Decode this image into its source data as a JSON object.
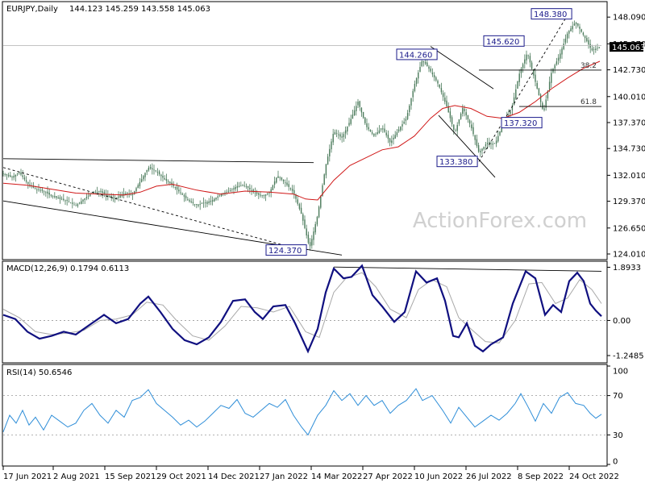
{
  "header": {
    "symbol": "EURJPY,Daily",
    "ohlc": "144.123 145.259 143.558 145.063"
  },
  "watermark": "ActionForex.com",
  "colors": {
    "candle": "#4a7a5a",
    "ma": "#d01818",
    "macd": "#101080",
    "signal": "#a8a8a8",
    "rsi": "#2f8ed8",
    "label_border": "#1a1a8a",
    "trend": "#000000"
  },
  "chart_data": [
    {
      "type": "candlestick",
      "panel": "price",
      "ylim": [
        123.6,
        149.5
      ],
      "y_ticks": [
        "148.090",
        "145.370",
        "142.730",
        "140.010",
        "137.370",
        "134.730",
        "132.010",
        "129.370",
        "126.650",
        "124.010"
      ],
      "last_price": "145.063",
      "x_labels": [
        "17 Jun 2021",
        "2 Aug 2021",
        "15 Sep 2021",
        "29 Oct 2021",
        "14 Dec 2021",
        "27 Jan 2022",
        "14 Mar 2022",
        "27 Apr 2022",
        "10 Jun 2022",
        "26 Jul 2022",
        "8 Sep 2022",
        "24 Oct 2022"
      ],
      "close_path": [
        [
          0,
          132.2
        ],
        [
          10,
          131.8
        ],
        [
          20,
          132.3
        ],
        [
          30,
          131.2
        ],
        [
          40,
          130.6
        ],
        [
          50,
          130.4
        ],
        [
          60,
          129.9
        ],
        [
          70,
          129.6
        ],
        [
          80,
          129.4
        ],
        [
          90,
          128.9
        ],
        [
          100,
          129.6
        ],
        [
          110,
          130.2
        ],
        [
          120,
          130.4
        ],
        [
          130,
          129.8
        ],
        [
          140,
          129.7
        ],
        [
          150,
          130.2
        ],
        [
          160,
          130.0
        ],
        [
          170,
          131.4
        ],
        [
          180,
          132.8
        ],
        [
          190,
          132.4
        ],
        [
          200,
          131.6
        ],
        [
          210,
          131.0
        ],
        [
          220,
          130.2
        ],
        [
          230,
          129.4
        ],
        [
          240,
          129.0
        ],
        [
          250,
          129.2
        ],
        [
          260,
          129.5
        ],
        [
          270,
          130.1
        ],
        [
          280,
          130.4
        ],
        [
          290,
          130.9
        ],
        [
          300,
          131.0
        ],
        [
          310,
          130.3
        ],
        [
          320,
          129.9
        ],
        [
          330,
          130.2
        ],
        [
          340,
          132.0
        ],
        [
          350,
          131.2
        ],
        [
          360,
          130.3
        ],
        [
          370,
          128.0
        ],
        [
          380,
          124.6
        ],
        [
          390,
          128.0
        ],
        [
          400,
          133.0
        ],
        [
          410,
          136.5
        ],
        [
          420,
          135.8
        ],
        [
          430,
          137.5
        ],
        [
          440,
          139.5
        ],
        [
          450,
          137.0
        ],
        [
          460,
          136.0
        ],
        [
          470,
          136.9
        ],
        [
          480,
          135.3
        ],
        [
          490,
          136.6
        ],
        [
          500,
          137.8
        ],
        [
          510,
          141.2
        ],
        [
          520,
          143.8
        ],
        [
          530,
          142.6
        ],
        [
          540,
          141.2
        ],
        [
          550,
          139.0
        ],
        [
          560,
          136.3
        ],
        [
          570,
          138.9
        ],
        [
          580,
          137.0
        ],
        [
          590,
          134.3
        ],
        [
          600,
          135.3
        ],
        [
          610,
          135.2
        ],
        [
          620,
          137.3
        ],
        [
          630,
          138.6
        ],
        [
          640,
          142.3
        ],
        [
          650,
          144.5
        ],
        [
          660,
          141.5
        ],
        [
          670,
          138.4
        ],
        [
          680,
          142.5
        ],
        [
          690,
          144.2
        ],
        [
          700,
          146.5
        ],
        [
          710,
          147.6
        ],
        [
          720,
          146.2
        ],
        [
          730,
          144.7
        ],
        [
          740,
          145.06
        ]
      ],
      "ma_path": [
        [
          0,
          131.2
        ],
        [
          30,
          131.0
        ],
        [
          60,
          130.6
        ],
        [
          90,
          130.2
        ],
        [
          120,
          130.1
        ],
        [
          150,
          130.0
        ],
        [
          170,
          130.3
        ],
        [
          190,
          130.9
        ],
        [
          210,
          131.1
        ],
        [
          240,
          130.5
        ],
        [
          270,
          130.1
        ],
        [
          300,
          130.4
        ],
        [
          330,
          130.3
        ],
        [
          360,
          130.1
        ],
        [
          375,
          129.6
        ],
        [
          390,
          129.5
        ],
        [
          410,
          131.5
        ],
        [
          430,
          133.0
        ],
        [
          450,
          133.8
        ],
        [
          470,
          134.6
        ],
        [
          490,
          134.9
        ],
        [
          510,
          136.0
        ],
        [
          530,
          137.8
        ],
        [
          545,
          138.8
        ],
        [
          560,
          139.1
        ],
        [
          580,
          138.8
        ],
        [
          600,
          138.0
        ],
        [
          620,
          137.8
        ],
        [
          640,
          138.4
        ],
        [
          660,
          139.5
        ],
        [
          680,
          140.8
        ],
        [
          700,
          141.9
        ],
        [
          720,
          142.9
        ],
        [
          740,
          143.6
        ]
      ],
      "trendlines": [
        [
          [
            0,
            133.7
          ],
          [
            385,
            133.3
          ]
        ],
        [
          [
            0,
            129.4
          ],
          [
            420,
            123.9
          ]
        ],
        [
          [
            530,
            145.1
          ],
          [
            608,
            140.8
          ]
        ],
        [
          [
            540,
            138.1
          ],
          [
            610,
            131.8
          ]
        ],
        [
          [
            590,
            142.7
          ],
          [
            742,
            142.7
          ]
        ],
        [
          [
            640,
            139.0
          ],
          [
            742,
            139.0
          ]
        ],
        [
          [
            590,
            133.4
          ],
          [
            700,
            148.3
          ]
        ],
        [
          [
            0,
            132.8
          ],
          [
            370,
            124.4
          ]
        ],
        [
          [
            0,
            145.2
          ],
          [
            742,
            145.2
          ]
        ]
      ],
      "dashed_indices": [
        6,
        7
      ],
      "gray_indices": [
        8
      ],
      "level_labels": [
        {
          "text": "148.380",
          "at": [
            655,
            148.38
          ]
        },
        {
          "text": "145.620",
          "at": [
            596,
            145.62
          ]
        },
        {
          "text": "144.260",
          "at": [
            488,
            144.26
          ]
        },
        {
          "text": "137.320",
          "at": [
            618,
            137.32
          ]
        },
        {
          "text": "133.380",
          "at": [
            538,
            133.38
          ]
        },
        {
          "text": "124.370",
          "at": [
            326,
            124.37
          ]
        }
      ],
      "fib_labels": [
        {
          "text": "38.2",
          "at": [
            736,
            142.7
          ]
        },
        {
          "text": "61.8",
          "at": [
            736,
            139.0
          ]
        }
      ]
    },
    {
      "type": "line",
      "panel": "macd",
      "title": "MACD(12,26,9) 0.1794 0.6113",
      "ylim": [
        -1.45,
        2.05
      ],
      "y_ticks": [
        "1.8933",
        "0.00",
        "-1.2485"
      ],
      "macd": [
        [
          0,
          0.2
        ],
        [
          15,
          0.05
        ],
        [
          30,
          -0.4
        ],
        [
          45,
          -0.65
        ],
        [
          60,
          -0.55
        ],
        [
          75,
          -0.4
        ],
        [
          90,
          -0.5
        ],
        [
          110,
          -0.1
        ],
        [
          125,
          0.2
        ],
        [
          140,
          -0.1
        ],
        [
          155,
          0.05
        ],
        [
          170,
          0.6
        ],
        [
          180,
          0.85
        ],
        [
          195,
          0.3
        ],
        [
          210,
          -0.3
        ],
        [
          225,
          -0.7
        ],
        [
          240,
          -0.85
        ],
        [
          255,
          -0.6
        ],
        [
          270,
          -0.05
        ],
        [
          285,
          0.7
        ],
        [
          300,
          0.75
        ],
        [
          312,
          0.3
        ],
        [
          322,
          0.05
        ],
        [
          335,
          0.5
        ],
        [
          350,
          0.55
        ],
        [
          362,
          -0.1
        ],
        [
          378,
          -1.1
        ],
        [
          390,
          -0.3
        ],
        [
          400,
          1.0
        ],
        [
          410,
          1.85
        ],
        [
          422,
          1.5
        ],
        [
          432,
          1.55
        ],
        [
          445,
          1.95
        ],
        [
          458,
          0.9
        ],
        [
          470,
          0.5
        ],
        [
          485,
          -0.05
        ],
        [
          498,
          0.3
        ],
        [
          512,
          1.75
        ],
        [
          525,
          1.35
        ],
        [
          538,
          1.5
        ],
        [
          548,
          0.7
        ],
        [
          558,
          -0.55
        ],
        [
          565,
          -0.6
        ],
        [
          575,
          -0.1
        ],
        [
          585,
          -0.9
        ],
        [
          595,
          -1.1
        ],
        [
          605,
          -0.85
        ],
        [
          620,
          -0.6
        ],
        [
          632,
          0.6
        ],
        [
          648,
          1.75
        ],
        [
          660,
          1.5
        ],
        [
          672,
          0.2
        ],
        [
          682,
          0.55
        ],
        [
          692,
          0.3
        ],
        [
          702,
          1.4
        ],
        [
          712,
          1.7
        ],
        [
          720,
          1.4
        ],
        [
          728,
          0.6
        ],
        [
          735,
          0.35
        ],
        [
          742,
          0.15
        ]
      ],
      "signal": [
        [
          0,
          0.4
        ],
        [
          20,
          0.1
        ],
        [
          40,
          -0.4
        ],
        [
          60,
          -0.5
        ],
        [
          80,
          -0.45
        ],
        [
          100,
          -0.35
        ],
        [
          120,
          0.0
        ],
        [
          140,
          0.05
        ],
        [
          160,
          0.2
        ],
        [
          178,
          0.65
        ],
        [
          198,
          0.55
        ],
        [
          215,
          0.0
        ],
        [
          235,
          -0.55
        ],
        [
          255,
          -0.7
        ],
        [
          275,
          -0.2
        ],
        [
          295,
          0.5
        ],
        [
          315,
          0.45
        ],
        [
          335,
          0.3
        ],
        [
          355,
          0.5
        ],
        [
          375,
          -0.4
        ],
        [
          392,
          -0.6
        ],
        [
          410,
          1.0
        ],
        [
          425,
          1.5
        ],
        [
          445,
          1.7
        ],
        [
          462,
          1.2
        ],
        [
          480,
          0.4
        ],
        [
          500,
          0.1
        ],
        [
          515,
          1.1
        ],
        [
          532,
          1.45
        ],
        [
          550,
          1.2
        ],
        [
          565,
          0.1
        ],
        [
          580,
          -0.3
        ],
        [
          598,
          -0.75
        ],
        [
          615,
          -0.8
        ],
        [
          635,
          0.0
        ],
        [
          652,
          1.3
        ],
        [
          668,
          1.35
        ],
        [
          685,
          0.6
        ],
        [
          700,
          0.8
        ],
        [
          715,
          1.45
        ],
        [
          730,
          1.1
        ],
        [
          742,
          0.6
        ]
      ],
      "trendline": [
        [
          410,
          1.9
        ],
        [
          742,
          1.75
        ]
      ]
    },
    {
      "type": "line",
      "panel": "rsi",
      "title": "RSI(14) 50.6546",
      "ylim": [
        0,
        100
      ],
      "y_ticks": [
        "100",
        "70",
        "30",
        "0"
      ],
      "levels": [
        70,
        30
      ],
      "rsi": [
        [
          0,
          33
        ],
        [
          8,
          50
        ],
        [
          16,
          42
        ],
        [
          24,
          55
        ],
        [
          32,
          40
        ],
        [
          40,
          48
        ],
        [
          50,
          35
        ],
        [
          60,
          50
        ],
        [
          70,
          44
        ],
        [
          80,
          38
        ],
        [
          90,
          42
        ],
        [
          100,
          55
        ],
        [
          110,
          62
        ],
        [
          120,
          50
        ],
        [
          130,
          42
        ],
        [
          140,
          55
        ],
        [
          150,
          48
        ],
        [
          160,
          65
        ],
        [
          170,
          68
        ],
        [
          180,
          76
        ],
        [
          190,
          62
        ],
        [
          200,
          55
        ],
        [
          210,
          48
        ],
        [
          220,
          40
        ],
        [
          230,
          45
        ],
        [
          240,
          38
        ],
        [
          250,
          44
        ],
        [
          260,
          52
        ],
        [
          270,
          60
        ],
        [
          280,
          57
        ],
        [
          290,
          66
        ],
        [
          300,
          52
        ],
        [
          310,
          48
        ],
        [
          320,
          55
        ],
        [
          330,
          62
        ],
        [
          340,
          58
        ],
        [
          350,
          66
        ],
        [
          360,
          50
        ],
        [
          370,
          38
        ],
        [
          378,
          30
        ],
        [
          390,
          50
        ],
        [
          400,
          60
        ],
        [
          410,
          75
        ],
        [
          420,
          65
        ],
        [
          430,
          72
        ],
        [
          440,
          60
        ],
        [
          450,
          70
        ],
        [
          460,
          60
        ],
        [
          470,
          65
        ],
        [
          480,
          52
        ],
        [
          490,
          60
        ],
        [
          500,
          65
        ],
        [
          512,
          77
        ],
        [
          520,
          65
        ],
        [
          532,
          70
        ],
        [
          545,
          55
        ],
        [
          555,
          42
        ],
        [
          565,
          58
        ],
        [
          575,
          48
        ],
        [
          585,
          38
        ],
        [
          595,
          44
        ],
        [
          605,
          50
        ],
        [
          615,
          45
        ],
        [
          625,
          52
        ],
        [
          635,
          62
        ],
        [
          642,
          72
        ],
        [
          650,
          60
        ],
        [
          660,
          44
        ],
        [
          670,
          62
        ],
        [
          680,
          52
        ],
        [
          690,
          68
        ],
        [
          700,
          73
        ],
        [
          710,
          62
        ],
        [
          720,
          60
        ],
        [
          728,
          52
        ],
        [
          735,
          47
        ],
        [
          742,
          51
        ]
      ]
    }
  ]
}
